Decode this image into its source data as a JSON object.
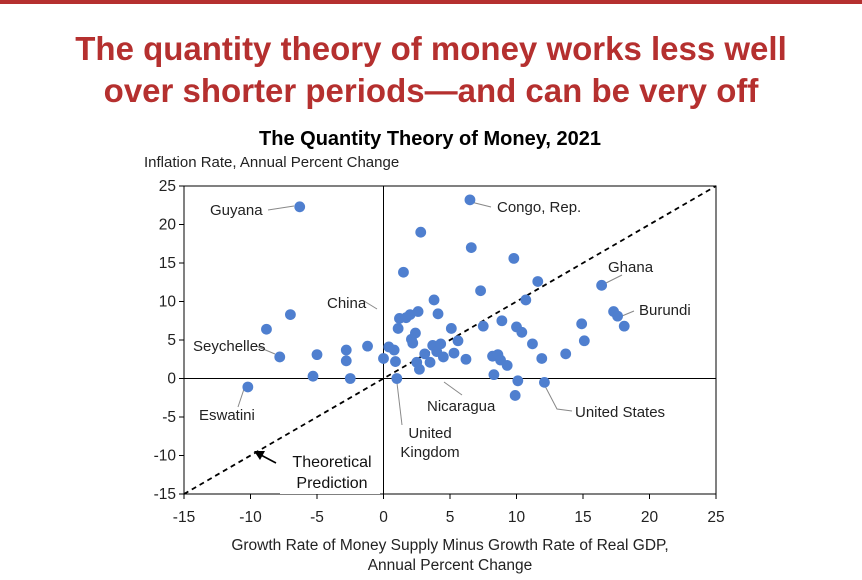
{
  "slide": {
    "headline_line1": "The quantity theory of money works less well",
    "headline_line2": "over shorter periods—and can be very off",
    "accent_color": "#b5302f"
  },
  "chart_data": {
    "type": "scatter",
    "title": "The Quantity  Theory of Money,  2021",
    "ylabel": "Inflation Rate, Annual Percent Change",
    "xlabel_line1": "Growth Rate of Money Supply Minus Growth Rate of Real GDP,",
    "xlabel_line2": "Annual Percent Change",
    "xlim": [
      -15,
      25
    ],
    "ylim": [
      -15,
      25
    ],
    "xticks": [
      "-15",
      "-10",
      "-5",
      "0",
      "5",
      "10",
      "15",
      "20",
      "25"
    ],
    "yticks": [
      "25",
      "20",
      "15",
      "10",
      "5",
      "0",
      "-5",
      "-10",
      "-15"
    ],
    "point_color": "#4f7fcf",
    "reference_line": {
      "label_line1": "Theoretical",
      "label_line2": "Prediction",
      "from": [
        -15,
        -15
      ],
      "to": [
        25,
        25
      ]
    },
    "points": [
      [
        -6.3,
        22.3
      ],
      [
        6.5,
        23.2
      ],
      [
        -7,
        8.3
      ],
      [
        -8.8,
        6.4
      ],
      [
        -7.8,
        2.8
      ],
      [
        -10.2,
        -1.1
      ],
      [
        -5,
        3.1
      ],
      [
        -5.3,
        0.3
      ],
      [
        -2.8,
        3.7
      ],
      [
        -2.8,
        2.3
      ],
      [
        -2.5,
        0
      ],
      [
        -1.2,
        4.2
      ],
      [
        0,
        2.6
      ],
      [
        0.4,
        4.1
      ],
      [
        0.8,
        3.7
      ],
      [
        0.9,
        2.2
      ],
      [
        1,
        0
      ],
      [
        1.2,
        7.8
      ],
      [
        1.1,
        6.5
      ],
      [
        1.5,
        13.8
      ],
      [
        1.7,
        7.9
      ],
      [
        2,
        8.3
      ],
      [
        2.1,
        5.1
      ],
      [
        2.2,
        4.6
      ],
      [
        2.4,
        5.9
      ],
      [
        2.6,
        8.7
      ],
      [
        2.5,
        2.1
      ],
      [
        2.7,
        1.2
      ],
      [
        2.8,
        19
      ],
      [
        3.1,
        3.2
      ],
      [
        3.5,
        2.1
      ],
      [
        3.7,
        4.3
      ],
      [
        3.8,
        10.2
      ],
      [
        4,
        3.5
      ],
      [
        4.1,
        8.4
      ],
      [
        4.3,
        4.5
      ],
      [
        4.5,
        2.8
      ],
      [
        5.1,
        6.5
      ],
      [
        5.3,
        3.3
      ],
      [
        5.6,
        4.9
      ],
      [
        6.2,
        2.5
      ],
      [
        6.6,
        17
      ],
      [
        7.3,
        11.4
      ],
      [
        7.5,
        6.8
      ],
      [
        8.2,
        2.9
      ],
      [
        8.3,
        0.5
      ],
      [
        8.6,
        3.1
      ],
      [
        8.8,
        2.4
      ],
      [
        8.9,
        7.5
      ],
      [
        9.3,
        1.7
      ],
      [
        9.8,
        15.6
      ],
      [
        9.9,
        -2.2
      ],
      [
        10,
        6.7
      ],
      [
        10.1,
        -0.3
      ],
      [
        10.4,
        6
      ],
      [
        10.7,
        10.2
      ],
      [
        11.2,
        4.5
      ],
      [
        11.6,
        12.6
      ],
      [
        11.9,
        2.6
      ],
      [
        12.1,
        -0.5
      ],
      [
        13.7,
        3.2
      ],
      [
        14.9,
        7.1
      ],
      [
        15.1,
        4.9
      ],
      [
        16.4,
        12.1
      ],
      [
        17.3,
        8.7
      ],
      [
        17.6,
        8.1
      ],
      [
        18.1,
        6.8
      ]
    ],
    "annotations": [
      {
        "label": "Guyana",
        "x": -6.3,
        "y": 22.3
      },
      {
        "label": "Congo, Rep.",
        "x": 6.5,
        "y": 23.2
      },
      {
        "label": "Ghana",
        "x": 16.4,
        "y": 12.1
      },
      {
        "label": "Burundi",
        "x": 17.6,
        "y": 8.1
      },
      {
        "label": "China",
        "x": 1.2,
        "y": 7.8
      },
      {
        "label": "Seychelles",
        "x": -7.8,
        "y": 2.8
      },
      {
        "label": "Eswatini",
        "x": -10.2,
        "y": -1.1
      },
      {
        "label": "Nicaragua",
        "x": 4.5,
        "y": 2.8
      },
      {
        "label": "United States",
        "x": 12.1,
        "y": -0.5
      },
      {
        "label_line1": "United",
        "label_line2": "Kingdom",
        "x": 1,
        "y": 0
      }
    ]
  }
}
